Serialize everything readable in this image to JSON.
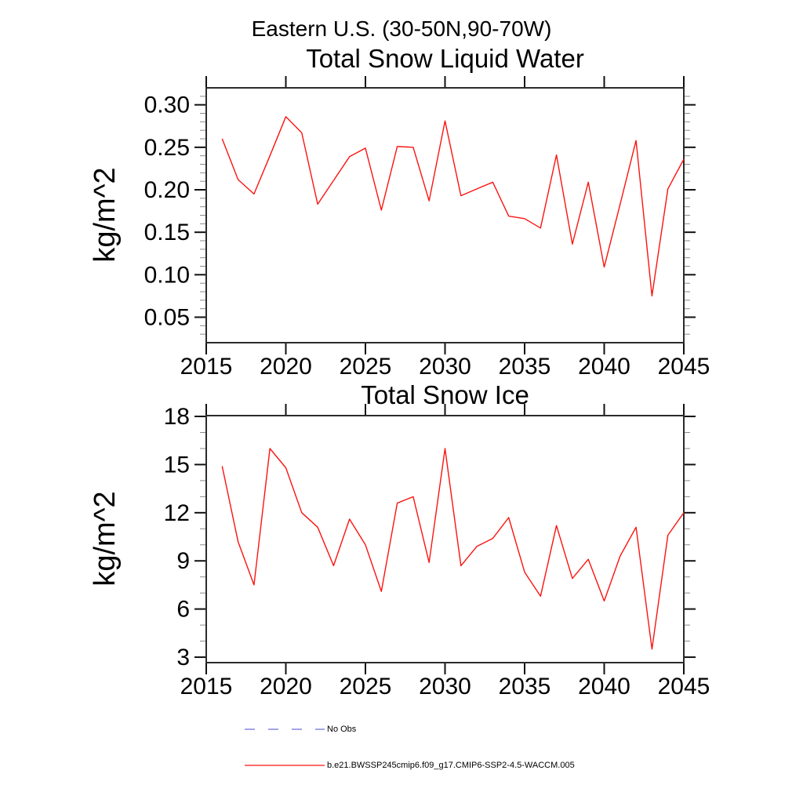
{
  "figure": {
    "title": "Eastern U.S. (30-50N,90-70W)"
  },
  "colors": {
    "background": "#ffffff",
    "line": "#fa1410",
    "no_obs": "#6e6ed6",
    "axis": "#2b2b2b",
    "tick_major": "#111111",
    "tick_minor": "#8a8a8a",
    "text": "#000000"
  },
  "legend": {
    "items": [
      {
        "label": "No Obs",
        "style": "dashed",
        "color": "#6e6ed6"
      },
      {
        "label": "b.e21.BWSSP245cmip6.f09_g17.CMIP6-SSP2-4.5-WACCM.005",
        "style": "solid",
        "color": "#fa1410"
      }
    ]
  },
  "chart_data": [
    {
      "type": "line",
      "title": "Total Snow Liquid Water",
      "ylabel": "kg/m^2",
      "series_name": "b.e21.BWSSP245cmip6.f09_g17.CMIP6-SSP2-4.5-WACCM.005",
      "x": [
        2016,
        2017,
        2018,
        2019,
        2020,
        2021,
        2022,
        2023,
        2024,
        2025,
        2026,
        2027,
        2028,
        2029,
        2030,
        2031,
        2032,
        2033,
        2034,
        2035,
        2036,
        2037,
        2038,
        2039,
        2040,
        2041,
        2042,
        2043,
        2044,
        2045
      ],
      "values": [
        0.26,
        0.212,
        0.195,
        0.24,
        0.286,
        0.267,
        0.183,
        0.211,
        0.239,
        0.249,
        0.176,
        0.251,
        0.25,
        0.187,
        0.281,
        0.193,
        0.201,
        0.209,
        0.169,
        0.166,
        0.155,
        0.241,
        0.136,
        0.209,
        0.109,
        0.183,
        0.258,
        0.075,
        0.201,
        0.236
      ],
      "xlim": [
        2015,
        2045
      ],
      "ylim": [
        0.02,
        0.32
      ],
      "xticks": [
        2015,
        2020,
        2025,
        2030,
        2035,
        2040,
        2045
      ],
      "yticks": [
        0.05,
        0.1,
        0.15,
        0.2,
        0.25,
        0.3
      ],
      "ytick_labels": [
        "0.05",
        "0.10",
        "0.15",
        "0.20",
        "0.25",
        "0.30"
      ],
      "y_minor_step": 0.01,
      "grid": false,
      "legend_position": "bottom"
    },
    {
      "type": "line",
      "title": "Total Snow Ice",
      "ylabel": "kg/m^2",
      "series_name": "b.e21.BWSSP245cmip6.f09_g17.CMIP6-SSP2-4.5-WACCM.005",
      "x": [
        2016,
        2017,
        2018,
        2019,
        2020,
        2021,
        2022,
        2023,
        2024,
        2025,
        2026,
        2027,
        2028,
        2029,
        2030,
        2031,
        2032,
        2033,
        2034,
        2035,
        2036,
        2037,
        2038,
        2039,
        2040,
        2041,
        2042,
        2043,
        2044,
        2045
      ],
      "values": [
        14.9,
        10.2,
        7.5,
        16.0,
        14.8,
        12.0,
        11.1,
        8.7,
        11.6,
        10.0,
        7.1,
        12.6,
        13.0,
        8.9,
        16.0,
        8.7,
        9.9,
        10.4,
        11.7,
        8.3,
        6.8,
        11.2,
        7.9,
        9.1,
        6.5,
        9.3,
        11.1,
        3.5,
        10.6,
        12.0
      ],
      "xlim": [
        2015,
        2045
      ],
      "ylim": [
        2.66,
        18.05
      ],
      "xticks": [
        2015,
        2020,
        2025,
        2030,
        2035,
        2040,
        2045
      ],
      "yticks": [
        3,
        6,
        9,
        12,
        15,
        18
      ],
      "ytick_labels": [
        "3",
        "6",
        "9",
        "12",
        "15",
        "18"
      ],
      "y_minor_step": 1,
      "grid": false,
      "legend_position": "bottom"
    }
  ]
}
